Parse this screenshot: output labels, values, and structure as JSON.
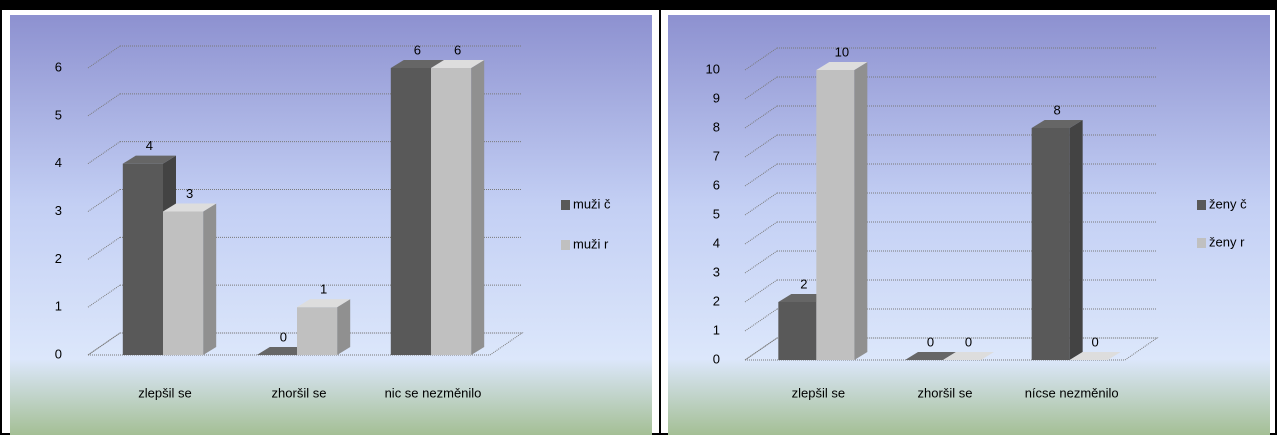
{
  "chart_data": [
    {
      "type": "bar",
      "categories": [
        "zlepšil se",
        "zhoršil se",
        "nic se nezměnilo"
      ],
      "series": [
        {
          "name": "muži č",
          "color": "#595959",
          "values": [
            4,
            0,
            6
          ]
        },
        {
          "name": "muži r",
          "color": "#c0c0c0",
          "values": [
            3,
            1,
            6
          ]
        }
      ],
      "ylim": [
        0,
        6
      ],
      "yticks": [
        0,
        1,
        2,
        3,
        4,
        5,
        6
      ],
      "grid": true,
      "legend": "right"
    },
    {
      "type": "bar",
      "categories": [
        "zlepšil se",
        "zhoršil se",
        "nícse nezměnilo"
      ],
      "series": [
        {
          "name": "ženy č",
          "color": "#595959",
          "values": [
            2,
            0,
            8
          ]
        },
        {
          "name": "ženy r",
          "color": "#c0c0c0",
          "values": [
            10,
            0,
            0
          ]
        }
      ],
      "ylim": [
        0,
        10
      ],
      "yticks": [
        0,
        1,
        2,
        3,
        4,
        5,
        6,
        7,
        8,
        9,
        10
      ],
      "grid": true,
      "legend": "right"
    }
  ]
}
